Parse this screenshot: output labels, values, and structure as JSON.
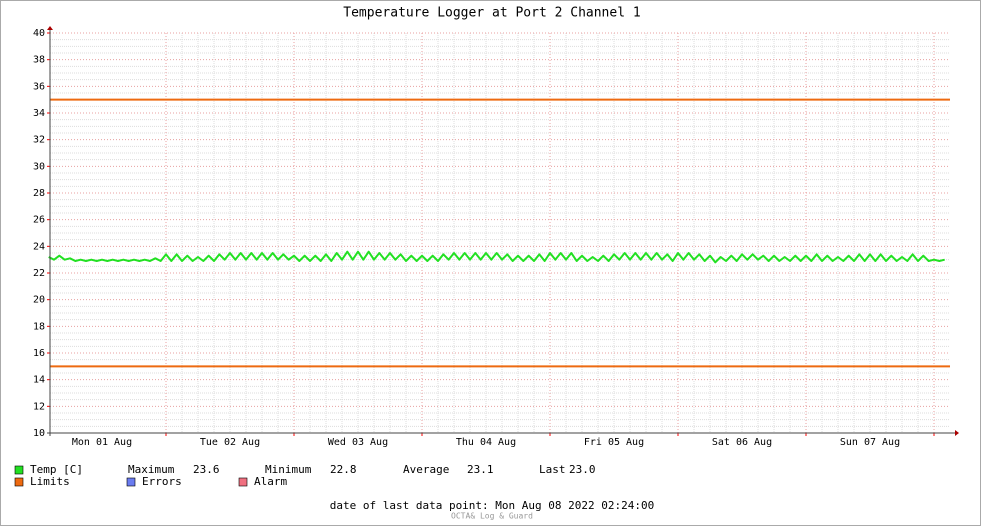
{
  "chart_data": {
    "type": "line",
    "title": "Temperature Logger at Port 2 Channel 1",
    "x": [
      2,
      3,
      4,
      5,
      6,
      7,
      8,
      9,
      10,
      11,
      12,
      13,
      14,
      15,
      16,
      17,
      18,
      19,
      20,
      21,
      22,
      23,
      24,
      25,
      26,
      27,
      28,
      29,
      30,
      31,
      32,
      33,
      34,
      35,
      36,
      37,
      38,
      39,
      40,
      41,
      42,
      43,
      44,
      45,
      46,
      47,
      48,
      49,
      50,
      51,
      52,
      53,
      54,
      55,
      56,
      57,
      58,
      59,
      60,
      61,
      62,
      63,
      64,
      65,
      66,
      67,
      68,
      69,
      70,
      71,
      72,
      73,
      74,
      75,
      76,
      77,
      78,
      79,
      80,
      81,
      82,
      83,
      84,
      85,
      86,
      87,
      88,
      89,
      90,
      91,
      92,
      93,
      94,
      95,
      96,
      97,
      98,
      99,
      100,
      101,
      102,
      103,
      104,
      105,
      106,
      107,
      108,
      109,
      110,
      111,
      112,
      113,
      114,
      115,
      116,
      117,
      118,
      119,
      120,
      121,
      122,
      123,
      124,
      125,
      126,
      127,
      128,
      129,
      130,
      131,
      132,
      133,
      134,
      135,
      136,
      137,
      138,
      139,
      140,
      141,
      142,
      143,
      144,
      145,
      146,
      147,
      148,
      149,
      150,
      151,
      152,
      153,
      154,
      155,
      156,
      157,
      158,
      159,
      160,
      161,
      162,
      163,
      164,
      165,
      166,
      167,
      168,
      169,
      170
    ],
    "series": [
      {
        "name": "Temp [C]",
        "color": "#22e022",
        "values": [
          23.2,
          23.0,
          23.3,
          23.0,
          23.1,
          22.9,
          23.0,
          22.9,
          23.0,
          22.9,
          23.0,
          22.9,
          23.0,
          22.9,
          23.0,
          22.9,
          23.0,
          22.9,
          23.0,
          22.9,
          23.1,
          22.9,
          23.4,
          22.9,
          23.4,
          22.9,
          23.3,
          22.9,
          23.2,
          22.9,
          23.3,
          22.9,
          23.4,
          23.0,
          23.5,
          23.0,
          23.5,
          23.0,
          23.5,
          23.0,
          23.5,
          23.0,
          23.5,
          23.0,
          23.4,
          23.0,
          23.3,
          22.9,
          23.3,
          22.9,
          23.3,
          22.9,
          23.4,
          22.9,
          23.5,
          23.0,
          23.6,
          23.0,
          23.6,
          23.0,
          23.6,
          23.0,
          23.5,
          23.0,
          23.5,
          23.0,
          23.4,
          22.9,
          23.3,
          22.9,
          23.3,
          22.9,
          23.3,
          22.9,
          23.4,
          23.0,
          23.5,
          23.0,
          23.5,
          23.0,
          23.5,
          23.0,
          23.5,
          23.0,
          23.5,
          23.0,
          23.4,
          22.9,
          23.3,
          22.9,
          23.3,
          22.9,
          23.4,
          22.9,
          23.5,
          23.0,
          23.5,
          23.0,
          23.5,
          22.9,
          23.3,
          22.9,
          23.2,
          22.9,
          23.3,
          22.9,
          23.4,
          23.0,
          23.5,
          23.0,
          23.5,
          23.0,
          23.5,
          23.0,
          23.5,
          23.0,
          23.4,
          22.9,
          23.5,
          23.0,
          23.5,
          23.0,
          23.4,
          22.9,
          23.3,
          22.8,
          23.2,
          22.9,
          23.3,
          22.9,
          23.4,
          23.0,
          23.4,
          23.0,
          23.3,
          22.9,
          23.3,
          22.9,
          23.2,
          22.9,
          23.3,
          22.9,
          23.3,
          22.9,
          23.4,
          22.9,
          23.3,
          22.9,
          23.2,
          22.9,
          23.3,
          22.9,
          23.4,
          22.9,
          23.4,
          22.9,
          23.4,
          22.9,
          23.3,
          22.9,
          23.2,
          22.9,
          23.4,
          22.9,
          23.3,
          22.9,
          23.0,
          22.9,
          23.0
        ]
      }
    ],
    "limits": {
      "name": "Limits",
      "color": "#ee6a10",
      "values": [
        35,
        15
      ]
    },
    "legend_extra": [
      {
        "name": "Errors",
        "color": "#6a7cf0"
      },
      {
        "name": "Alarm",
        "color": "#f07080"
      }
    ],
    "stats": {
      "names": [
        "Maximum",
        "Minimum",
        "Average",
        "Last"
      ],
      "values": [
        23.6,
        22.8,
        23.1,
        23
      ],
      "value_labels": [
        "23.6",
        "22.8",
        "23.1",
        "23.0"
      ]
    },
    "xlim": [
      2.25,
      171
    ],
    "xticks": [
      {
        "value": 12,
        "label": "Mon 01 Aug"
      },
      {
        "value": 36,
        "label": "Tue 02 Aug"
      },
      {
        "value": 60,
        "label": "Wed 03 Aug"
      },
      {
        "value": 84,
        "label": "Thu 04 Aug"
      },
      {
        "value": 108,
        "label": "Fri 05 Aug"
      },
      {
        "value": 132,
        "label": "Sat 06 Aug"
      },
      {
        "value": 156,
        "label": "Sun 07 Aug"
      }
    ],
    "xgrid": [
      24,
      48,
      72,
      96,
      120,
      144,
      168
    ],
    "ylim": [
      10,
      40
    ],
    "yticks": [
      10,
      12,
      14,
      16,
      18,
      20,
      22,
      24,
      26,
      28,
      30,
      32,
      34,
      36,
      38,
      40
    ],
    "grid": true,
    "footer": "date of last data point:  Mon Aug 08 2022 02:24:00",
    "credit": "OCTA& Log & Guard"
  }
}
